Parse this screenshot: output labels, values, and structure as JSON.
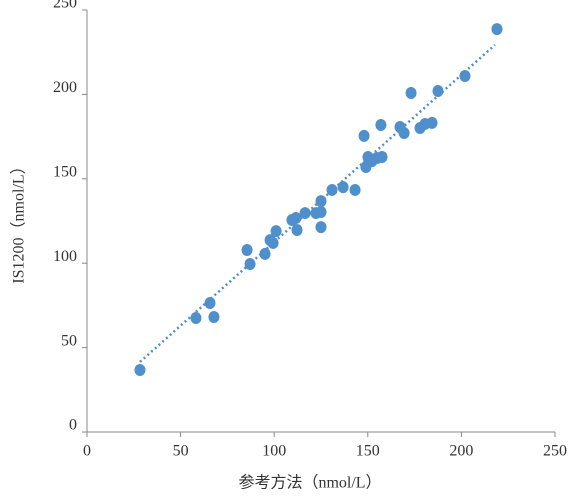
{
  "chart_data": {
    "type": "scatter",
    "xlabel": "参考方法（nmol/L）",
    "ylabel": "IS1200（nmol/L）",
    "xlim": [
      0,
      250
    ],
    "ylim": [
      0,
      250
    ],
    "xticks": [
      0,
      50,
      100,
      150,
      200,
      250
    ],
    "yticks": [
      0,
      50,
      100,
      150,
      200,
      250
    ],
    "grid": false,
    "color": "#4f8fcc",
    "x": [
      28.3,
      58.2,
      65.7,
      67.8,
      85.5,
      87.1,
      95.1,
      97.8,
      99.4,
      101,
      109.5,
      111.6,
      112.2,
      116.5,
      122.3,
      125,
      125,
      125,
      130.9,
      136.8,
      143.2,
      148,
      149,
      150.1,
      152.2,
      154.9,
      157.6,
      157,
      173.1,
      167.2,
      169.4,
      177.9,
      180.6,
      184.3,
      187.5,
      201.9,
      219
    ],
    "y": [
      36.7,
      67.5,
      76.4,
      68.1,
      107.8,
      99.5,
      105.5,
      113.7,
      112,
      119,
      125.6,
      126.8,
      119.7,
      129.7,
      129.7,
      130.3,
      136.8,
      121.4,
      143.4,
      145.1,
      143.4,
      175.4,
      157,
      162.9,
      160.5,
      162.3,
      162.9,
      181.9,
      200.8,
      180.7,
      177.1,
      180.1,
      182.5,
      183.1,
      202,
      210.9,
      238.7
    ],
    "trendline": {
      "x": [
        28.3,
        217.9
      ],
      "y": [
        41.5,
        229.3
      ]
    }
  }
}
